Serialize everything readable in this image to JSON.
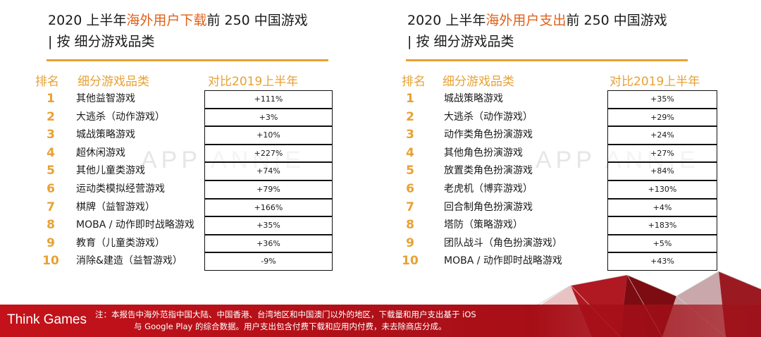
{
  "watermark": "APP ANNIE",
  "left": {
    "title_pre": "2020 上半年",
    "title_hl": "海外",
    "title_mid": "用户",
    "title_hl2": "下载",
    "title_post": "前 250 中国游戏",
    "title_line2": "| 按 细分游戏品类",
    "hdr_rank": "排名",
    "hdr_cat": "细分游戏品类",
    "hdr_cmp": "对比2019上半年",
    "rows": [
      {
        "rank": "1",
        "category": "其他益智游戏",
        "change": "+111%"
      },
      {
        "rank": "2",
        "category": "大逃杀（动作游戏）",
        "change": "+3%"
      },
      {
        "rank": "3",
        "category": "城战策略游戏",
        "change": "+10%"
      },
      {
        "rank": "4",
        "category": "超休闲游戏",
        "change": "+227%"
      },
      {
        "rank": "5",
        "category": "其他儿童类游戏",
        "change": "+74%"
      },
      {
        "rank": "6",
        "category": "运动类模拟经营游戏",
        "change": "+79%"
      },
      {
        "rank": "7",
        "category": "棋牌（益智游戏）",
        "change": "+166%"
      },
      {
        "rank": "8",
        "category": "MOBA / 动作即时战略游戏",
        "change": "+35%"
      },
      {
        "rank": "9",
        "category": "教育（儿童类游戏）",
        "change": "+36%"
      },
      {
        "rank": "10",
        "category": "消除&建造（益智游戏）",
        "change": "-9%"
      }
    ]
  },
  "right": {
    "title_pre": "2020 上半年",
    "title_hl": "海外",
    "title_mid": "用户",
    "title_hl2": "支出",
    "title_post": "前 250 中国游戏",
    "title_line2": "| 按 细分游戏品类",
    "hdr_rank": "排名",
    "hdr_cat": "细分游戏品类",
    "hdr_cmp": "对比2019上半年",
    "rows": [
      {
        "rank": "1",
        "category": "城战策略游戏",
        "change": "+35%"
      },
      {
        "rank": "2",
        "category": "大逃杀（动作游戏）",
        "change": "+29%"
      },
      {
        "rank": "3",
        "category": "动作类角色扮演游戏",
        "change": "+24%"
      },
      {
        "rank": "4",
        "category": "其他角色扮演游戏",
        "change": "+27%"
      },
      {
        "rank": "5",
        "category": "放置类角色扮演游戏",
        "change": "+84%"
      },
      {
        "rank": "6",
        "category": "老虎机（博弈游戏）",
        "change": "+130%"
      },
      {
        "rank": "7",
        "category": "回合制角色扮演游戏",
        "change": "+4%"
      },
      {
        "rank": "8",
        "category": "塔防（策略游戏）",
        "change": "+183%"
      },
      {
        "rank": "9",
        "category": "团队战斗（角色扮演游戏）",
        "change": "+5%"
      },
      {
        "rank": "10",
        "category": "MOBA / 动作即时战略游戏",
        "change": "+43%"
      }
    ]
  },
  "footer": {
    "brand": "Think Games",
    "note_line1": "注：本报告中海外范指中国大陆、中国香港、台湾地区和中国澳门以外的地区，下载量和用户支出基于 iOS",
    "note_line2": "与 Google Play 的综合数据。用户支出包含付费下载和应用内付费，未去除商店分成。"
  },
  "colors": {
    "accent": "#e8a133",
    "highlight": "#e0611b",
    "footer_red": "#c4121a"
  }
}
